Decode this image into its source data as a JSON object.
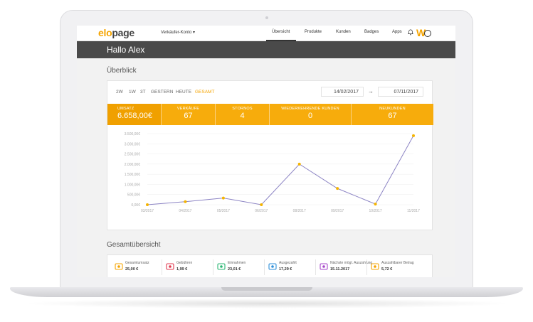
{
  "nav": {
    "logo_primary": "elo",
    "logo_secondary": "page",
    "account": "Verkäufer-Konto",
    "items": [
      "Übersicht",
      "Produkte",
      "Kunden",
      "Badges",
      "Apps"
    ],
    "avatar_letter": "W"
  },
  "greeting": "Hallo Alex",
  "overview": {
    "title": "Überblick",
    "ranges": [
      "2W",
      "1W",
      "3T",
      "GESTERN",
      "HEUTE",
      "GESAMT"
    ],
    "active_range": "GESAMT",
    "date_from": "14/02/2017",
    "date_to": "07/11/2017",
    "kpis": [
      {
        "label": "UMSATZ",
        "value": "6.658,00€"
      },
      {
        "label": "VERKÄUFE",
        "value": "67"
      },
      {
        "label": "STORNOS",
        "value": "4"
      },
      {
        "label": "WIEDERKEHRENDE KUNDEN",
        "value": "0"
      },
      {
        "label": "NEUKUNDEN",
        "value": "67"
      }
    ]
  },
  "chart_data": {
    "type": "line",
    "x": [
      "03/2017",
      "04/2017",
      "05/2017",
      "06/2017",
      "08/2017",
      "09/2017",
      "10/2017",
      "11/2017"
    ],
    "series": [
      {
        "values": [
          0,
          150,
          330,
          0,
          2000,
          800,
          30,
          3400
        ]
      }
    ],
    "y_ticks": [
      "0,00€",
      "500,00€",
      "1.000,00€",
      "1.500,00€",
      "2.000,00€",
      "2.500,00€",
      "3.000,00€",
      "3.500,00€"
    ],
    "ylim": [
      0,
      3500
    ],
    "colors": {
      "line": "#8c84c4",
      "point": "#f5b400"
    }
  },
  "summary": {
    "title": "Gesamtübersicht",
    "stats": [
      {
        "label": "Gesamtumsatz",
        "value": "25,00 €",
        "icon": "money-icon",
        "color": "#f5a400"
      },
      {
        "label": "Gebühren",
        "value": "1,99 €",
        "icon": "fees-icon",
        "color": "#e0394f"
      },
      {
        "label": "Einnahmen",
        "value": "23,01 €",
        "icon": "income-icon",
        "color": "#2bb673"
      },
      {
        "label": "Ausgezahlt",
        "value": "17,29 €",
        "icon": "payout-icon",
        "color": "#2f8fd8"
      },
      {
        "label": "Nächste mögl. Auszahlung",
        "value": "15.11.2017",
        "icon": "calendar-icon",
        "color": "#a646c9"
      },
      {
        "label": "Auszahlbarer Betrag",
        "value": "5,72 €",
        "icon": "wallet-icon",
        "color": "#f5a400"
      }
    ]
  }
}
